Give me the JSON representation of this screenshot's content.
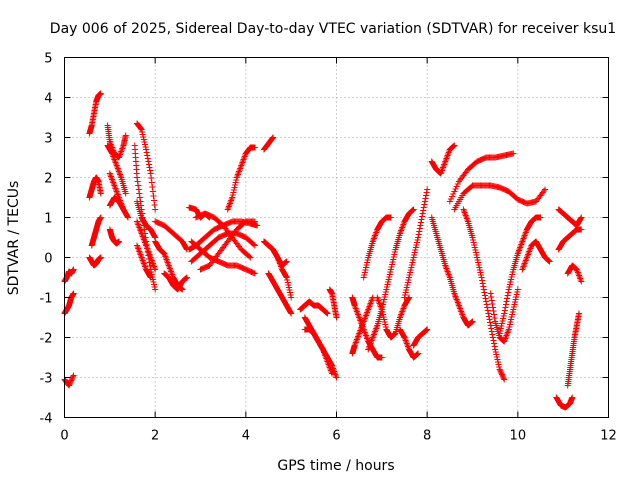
{
  "chart_data": {
    "type": "scatter",
    "title": "Day 006 of 2025, Sidereal Day-to-day VTEC variation (SDTVAR) for receiver ksu1",
    "xlabel": "GPS time / hours",
    "ylabel": "SDTVAR / TECUs",
    "xlim": [
      0,
      12
    ],
    "ylim": [
      -4,
      5
    ],
    "xticks": [
      "0",
      "2",
      "4",
      "6",
      "8",
      "10",
      "12"
    ],
    "yticks": [
      "-4",
      "-3",
      "-2",
      "-1",
      "0",
      "1",
      "2",
      "3",
      "4",
      "5"
    ],
    "grid": true,
    "marker": "plus",
    "color": "#ff0000",
    "tracks": [
      {
        "x": [
          0.0,
          0.1,
          0.2
        ],
        "y": [
          -3.05,
          -3.2,
          -2.95
        ]
      },
      {
        "x": [
          0.0,
          0.05,
          0.1,
          0.15,
          0.2
        ],
        "y": [
          -0.6,
          -0.5,
          -0.35,
          -0.4,
          -0.3
        ]
      },
      {
        "x": [
          0.0,
          0.05,
          0.1,
          0.15,
          0.2
        ],
        "y": [
          -1.4,
          -1.3,
          -1.2,
          -1.0,
          -0.9
        ]
      },
      {
        "x": [
          0.55,
          0.6,
          0.65,
          0.7,
          0.75,
          0.8
        ],
        "y": [
          3.1,
          3.3,
          3.6,
          3.9,
          4.05,
          4.1
        ]
      },
      {
        "x": [
          0.55,
          0.6,
          0.65,
          0.7,
          0.75,
          0.8
        ],
        "y": [
          1.5,
          1.7,
          1.9,
          2.0,
          1.9,
          1.6
        ]
      },
      {
        "x": [
          0.6,
          0.65,
          0.7,
          0.75,
          0.8
        ],
        "y": [
          0.3,
          0.5,
          0.7,
          0.9,
          1.0
        ]
      },
      {
        "x": [
          0.55,
          0.6,
          0.65,
          0.7,
          0.75,
          0.8
        ],
        "y": [
          0.0,
          -0.1,
          -0.2,
          -0.15,
          -0.05,
          0.0
        ]
      },
      {
        "x": [
          0.95,
          1.0,
          1.1,
          1.2,
          1.3,
          1.35
        ],
        "y": [
          3.3,
          2.9,
          2.6,
          2.5,
          2.8,
          3.05
        ]
      },
      {
        "x": [
          0.95,
          1.05,
          1.15,
          1.25,
          1.35
        ],
        "y": [
          2.8,
          2.6,
          2.3,
          2.0,
          1.6
        ]
      },
      {
        "x": [
          1.0,
          1.1,
          1.2,
          1.3,
          1.4
        ],
        "y": [
          2.1,
          1.8,
          1.5,
          1.2,
          1.0
        ]
      },
      {
        "x": [
          1.0,
          1.1,
          1.2,
          1.3
        ],
        "y": [
          1.3,
          1.5,
          1.4,
          1.2
        ]
      },
      {
        "x": [
          1.0,
          1.05,
          1.1,
          1.15,
          1.2
        ],
        "y": [
          0.7,
          0.5,
          0.4,
          0.35,
          0.4
        ]
      },
      {
        "x": [
          1.6,
          1.7,
          1.8,
          1.9,
          2.0
        ],
        "y": [
          3.35,
          3.2,
          2.7,
          2.1,
          1.2
        ]
      },
      {
        "x": [
          1.55,
          1.6,
          1.7,
          1.8,
          1.9,
          2.0
        ],
        "y": [
          2.8,
          2.0,
          1.2,
          0.4,
          -0.3,
          -0.8
        ]
      },
      {
        "x": [
          1.6,
          1.7,
          1.8,
          1.9,
          2.0
        ],
        "y": [
          1.4,
          1.0,
          0.8,
          0.7,
          0.5
        ]
      },
      {
        "x": [
          1.6,
          1.7,
          1.8,
          1.9,
          2.0
        ],
        "y": [
          0.9,
          0.6,
          0.3,
          0.0,
          -0.3
        ]
      },
      {
        "x": [
          1.6,
          1.7,
          1.8,
          1.9
        ],
        "y": [
          0.3,
          0.0,
          -0.3,
          -0.5
        ]
      },
      {
        "x": [
          2.0,
          2.1,
          2.2,
          2.3,
          2.4,
          2.5,
          2.6
        ],
        "y": [
          0.4,
          0.2,
          0.1,
          -0.2,
          -0.5,
          -0.7,
          -0.8
        ]
      },
      {
        "x": [
          2.0,
          2.2,
          2.4,
          2.6,
          2.7
        ],
        "y": [
          0.9,
          0.8,
          0.6,
          0.4,
          0.2
        ]
      },
      {
        "x": [
          2.2,
          2.3,
          2.4,
          2.5,
          2.6,
          2.7
        ],
        "y": [
          -0.4,
          -0.5,
          -0.7,
          -0.8,
          -0.6,
          -0.5
        ]
      },
      {
        "x": [
          2.75,
          2.9,
          3.0,
          3.1,
          3.2
        ],
        "y": [
          1.25,
          1.2,
          1.0,
          1.1,
          1.0
        ]
      },
      {
        "x": [
          2.75,
          2.9,
          3.1,
          3.3,
          3.5,
          3.7,
          3.9,
          4.1,
          4.25
        ],
        "y": [
          0.2,
          0.3,
          0.5,
          0.7,
          0.8,
          0.9,
          0.9,
          0.85,
          0.8
        ]
      },
      {
        "x": [
          2.8,
          3.0,
          3.2,
          3.4,
          3.6,
          3.8,
          4.0,
          4.2
        ],
        "y": [
          -0.1,
          0.1,
          0.3,
          0.5,
          0.6,
          0.6,
          0.5,
          0.3
        ]
      },
      {
        "x": [
          2.8,
          3.0,
          3.2,
          3.4,
          3.6,
          3.8,
          4.0,
          4.2
        ],
        "y": [
          0.4,
          0.2,
          0.0,
          -0.1,
          -0.2,
          -0.2,
          -0.3,
          -0.4
        ]
      },
      {
        "x": [
          2.9,
          3.1,
          3.3,
          3.5,
          3.7,
          3.9,
          4.1
        ],
        "y": [
          1.0,
          1.1,
          1.0,
          0.8,
          0.5,
          0.2,
          0.0
        ]
      },
      {
        "x": [
          3.0,
          3.2,
          3.4,
          3.6,
          3.8,
          4.0,
          4.2
        ],
        "y": [
          -0.3,
          -0.2,
          0.1,
          0.4,
          0.7,
          0.9,
          0.9
        ]
      },
      {
        "x": [
          3.6,
          3.7,
          3.8,
          3.9,
          4.0,
          4.1,
          4.2
        ],
        "y": [
          1.2,
          1.5,
          2.0,
          2.3,
          2.6,
          2.75,
          2.75
        ]
      },
      {
        "x": [
          4.4,
          4.5,
          4.6
        ],
        "y": [
          2.7,
          2.85,
          3.0
        ]
      },
      {
        "x": [
          4.4,
          4.5,
          4.6,
          4.7,
          4.8,
          4.9,
          5.0
        ],
        "y": [
          0.4,
          0.3,
          0.2,
          0.0,
          -0.3,
          -0.5,
          -1.0
        ]
      },
      {
        "x": [
          4.5,
          4.6,
          4.7,
          4.8,
          4.9,
          5.0
        ],
        "y": [
          -0.4,
          -0.6,
          -0.8,
          -1.0,
          -1.2,
          -1.4
        ]
      },
      {
        "x": [
          4.6,
          4.7,
          4.8,
          4.9
        ],
        "y": [
          0.2,
          0.0,
          -0.2,
          -0.1
        ]
      },
      {
        "x": [
          5.2,
          5.3,
          5.4,
          5.5,
          5.6,
          5.7,
          5.8
        ],
        "y": [
          -1.3,
          -1.2,
          -1.1,
          -1.2,
          -1.2,
          -1.3,
          -1.4
        ]
      },
      {
        "x": [
          5.3,
          5.4,
          5.5,
          5.6,
          5.7,
          5.8,
          5.9,
          6.0
        ],
        "y": [
          -1.5,
          -1.7,
          -1.9,
          -2.1,
          -2.3,
          -2.5,
          -2.7,
          -3.0
        ]
      },
      {
        "x": [
          5.3,
          5.4,
          5.5,
          5.6,
          5.7,
          5.8,
          5.9
        ],
        "y": [
          -1.8,
          -1.8,
          -1.9,
          -2.1,
          -2.3,
          -2.6,
          -2.9
        ]
      },
      {
        "x": [
          5.85,
          5.9,
          5.95,
          6.0
        ],
        "y": [
          -0.8,
          -0.9,
          -1.2,
          -1.5
        ]
      },
      {
        "x": [
          6.35,
          6.4,
          6.5,
          6.6,
          6.7,
          6.8,
          6.9,
          7.0
        ],
        "y": [
          -1.0,
          -1.2,
          -1.5,
          -1.8,
          -2.1,
          -2.3,
          -2.5,
          -2.5
        ]
      },
      {
        "x": [
          6.35,
          6.4,
          6.5,
          6.6,
          6.7,
          6.8
        ],
        "y": [
          -2.4,
          -2.2,
          -1.9,
          -1.6,
          -1.3,
          -1.0
        ]
      },
      {
        "x": [
          6.6,
          6.7,
          6.8,
          6.9,
          7.0,
          7.1,
          7.2
        ],
        "y": [
          -0.5,
          0.0,
          0.4,
          0.7,
          0.9,
          1.0,
          1.0
        ]
      },
      {
        "x": [
          6.9,
          7.0,
          7.1,
          7.2,
          7.3,
          7.4,
          7.5,
          7.6
        ],
        "y": [
          -1.0,
          -1.3,
          -1.8,
          -2.0,
          -1.9,
          -1.5,
          -1.2,
          -1.0
        ]
      },
      {
        "x": [
          6.7,
          6.8,
          6.9,
          7.0,
          7.1,
          7.2,
          7.3,
          7.4,
          7.5,
          7.6,
          7.7
        ],
        "y": [
          -2.3,
          -2.0,
          -1.7,
          -1.3,
          -0.8,
          -0.3,
          0.2,
          0.6,
          0.9,
          1.1,
          1.2
        ]
      },
      {
        "x": [
          7.5,
          7.6,
          7.7,
          7.8,
          7.9,
          8.0
        ],
        "y": [
          -1.0,
          -0.5,
          0.0,
          0.5,
          1.1,
          1.7
        ]
      },
      {
        "x": [
          7.4,
          7.5,
          7.6,
          7.7,
          7.8
        ],
        "y": [
          -1.8,
          -2.0,
          -2.3,
          -2.5,
          -2.4
        ]
      },
      {
        "x": [
          7.7,
          7.8,
          7.9,
          8.0
        ],
        "y": [
          -2.2,
          -2.0,
          -1.9,
          -1.8
        ]
      },
      {
        "x": [
          8.1,
          8.2,
          8.3,
          8.4,
          8.5,
          8.6
        ],
        "y": [
          2.4,
          2.2,
          2.1,
          2.4,
          2.7,
          2.8
        ]
      },
      {
        "x": [
          8.1,
          8.2,
          8.3,
          8.4,
          8.5,
          8.6,
          8.7,
          8.8,
          8.9,
          9.0
        ],
        "y": [
          1.0,
          0.6,
          0.2,
          -0.2,
          -0.5,
          -0.9,
          -1.2,
          -1.5,
          -1.7,
          -1.6
        ]
      },
      {
        "x": [
          8.5,
          8.7,
          8.9,
          9.1,
          9.3,
          9.5,
          9.7,
          9.9
        ],
        "y": [
          1.4,
          1.9,
          2.2,
          2.4,
          2.5,
          2.5,
          2.55,
          2.6
        ]
      },
      {
        "x": [
          8.6,
          8.8,
          9.0,
          9.2,
          9.4,
          9.6,
          9.8,
          10.0,
          10.2,
          10.4,
          10.6
        ],
        "y": [
          1.2,
          1.6,
          1.8,
          1.8,
          1.8,
          1.75,
          1.65,
          1.45,
          1.35,
          1.4,
          1.7
        ]
      },
      {
        "x": [
          8.8,
          8.9,
          9.0,
          9.1,
          9.2,
          9.3,
          9.4,
          9.5,
          9.6,
          9.7
        ],
        "y": [
          1.2,
          0.9,
          0.5,
          0.0,
          -0.5,
          -1.1,
          -1.7,
          -2.3,
          -2.8,
          -3.05
        ]
      },
      {
        "x": [
          9.6,
          9.7,
          9.8,
          9.9,
          10.0,
          10.1,
          10.2,
          10.3,
          10.4,
          10.5
        ],
        "y": [
          -1.9,
          -1.4,
          -0.8,
          -0.3,
          0.1,
          0.4,
          0.7,
          0.9,
          1.0,
          1.0
        ]
      },
      {
        "x": [
          9.4,
          9.5,
          9.6,
          9.7,
          9.8,
          9.9,
          10.0
        ],
        "y": [
          -0.9,
          -1.6,
          -2.0,
          -2.1,
          -1.8,
          -1.3,
          -0.8
        ]
      },
      {
        "x": [
          10.1,
          10.2,
          10.3,
          10.4,
          10.5,
          10.6,
          10.7
        ],
        "y": [
          -0.3,
          0.0,
          0.3,
          0.4,
          0.2,
          0.0,
          -0.1
        ]
      },
      {
        "x": [
          10.85,
          10.95,
          11.05,
          11.15,
          11.2
        ],
        "y": [
          -3.5,
          -3.7,
          -3.75,
          -3.65,
          -3.5
        ]
      },
      {
        "x": [
          11.1,
          11.15,
          11.2,
          11.25,
          11.3,
          11.35
        ],
        "y": [
          -3.2,
          -2.8,
          -2.4,
          -2.0,
          -1.7,
          -1.4
        ]
      },
      {
        "x": [
          10.9,
          11.0,
          11.1,
          11.2,
          11.3,
          11.4
        ],
        "y": [
          0.2,
          0.4,
          0.5,
          0.6,
          0.7,
          0.7
        ]
      },
      {
        "x": [
          10.9,
          11.0,
          11.1,
          11.2,
          11.3,
          11.4
        ],
        "y": [
          1.2,
          1.1,
          1.0,
          0.9,
          0.8,
          1.0
        ]
      },
      {
        "x": [
          11.1,
          11.2,
          11.3,
          11.4
        ],
        "y": [
          -0.4,
          -0.2,
          -0.3,
          -0.6
        ]
      }
    ]
  }
}
